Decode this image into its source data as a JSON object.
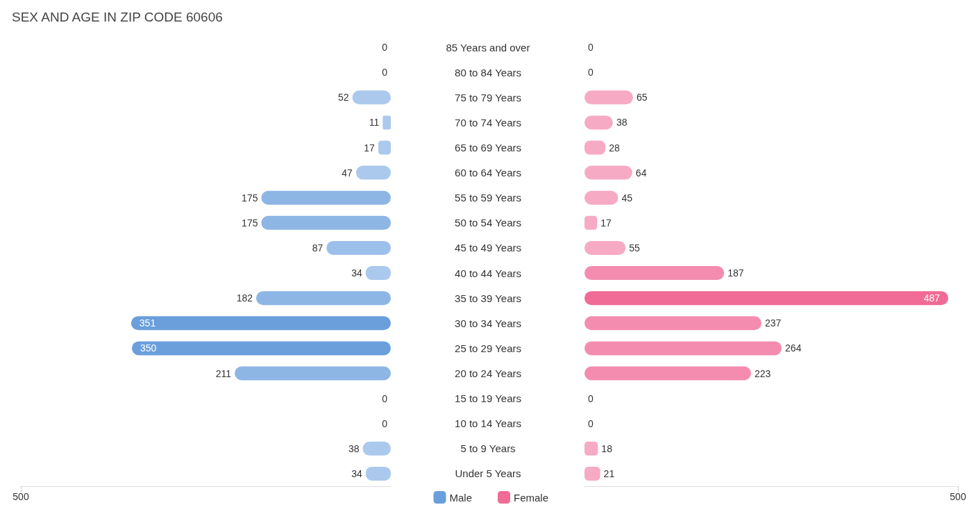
{
  "chart_data": [
    {
      "type": "bar",
      "orientation": "horizontal",
      "title": "SEX AND AGE IN ZIP CODE 60606",
      "categories": [
        "85 Years and over",
        "80 to 84 Years",
        "75 to 79 Years",
        "70 to 74 Years",
        "65 to 69 Years",
        "60 to 64 Years",
        "55 to 59 Years",
        "50 to 54 Years",
        "45 to 49 Years",
        "40 to 44 Years",
        "35 to 39 Years",
        "30 to 34 Years",
        "25 to 29 Years",
        "20 to 24 Years",
        "15 to 19 Years",
        "10 to 14 Years",
        "5 to 9 Years",
        "Under 5 Years"
      ],
      "series": [
        {
          "name": "Male",
          "color": "#6a9fdc",
          "values": [
            0,
            0,
            52,
            11,
            17,
            47,
            175,
            175,
            87,
            34,
            182,
            351,
            350,
            211,
            0,
            0,
            38,
            34
          ],
          "colors": [
            "#aac9ed",
            "#aac9ed",
            "#aac9ed",
            "#aac9ed",
            "#aac9ed",
            "#aac9ed",
            "#8db6e5",
            "#8db6e5",
            "#9cc0ea",
            "#aac9ed",
            "#8db6e5",
            "#6a9fdc",
            "#6a9fdc",
            "#8db6e5",
            "#aac9ed",
            "#aac9ed",
            "#aac9ed",
            "#aac9ed"
          ]
        }
      ],
      "data_labels": true,
      "xlim": [
        500,
        0
      ],
      "xticks": [
        500
      ],
      "legend": "bottom right"
    },
    {
      "type": "bar",
      "orientation": "horizontal",
      "categories": [
        null,
        null,
        null,
        null,
        null,
        null,
        null,
        null,
        null,
        null,
        null,
        null,
        null,
        null,
        null,
        null,
        null,
        null
      ],
      "series": [
        {
          "name": "Female",
          "color": "#f06b95",
          "values": [
            0,
            0,
            65,
            38,
            28,
            64,
            45,
            17,
            55,
            187,
            487,
            237,
            264,
            223,
            0,
            0,
            18,
            21
          ],
          "colors": [
            "#f7aac4",
            "#f7aac4",
            "#f7aac4",
            "#f7aac4",
            "#f7aac4",
            "#f7aac4",
            "#f7aac4",
            "#f7aac4",
            "#f7aac4",
            "#f48cb0",
            "#f06b95",
            "#f48cb0",
            "#f48cb0",
            "#f48cb0",
            "#f7aac4",
            "#f7aac4",
            "#f7aac4",
            "#f7aac4"
          ]
        }
      ],
      "data_labels": true,
      "xlim": [
        0,
        500
      ],
      "xticks": [
        500
      ],
      "tick_labels": "x",
      "legend": "bottom left"
    }
  ]
}
